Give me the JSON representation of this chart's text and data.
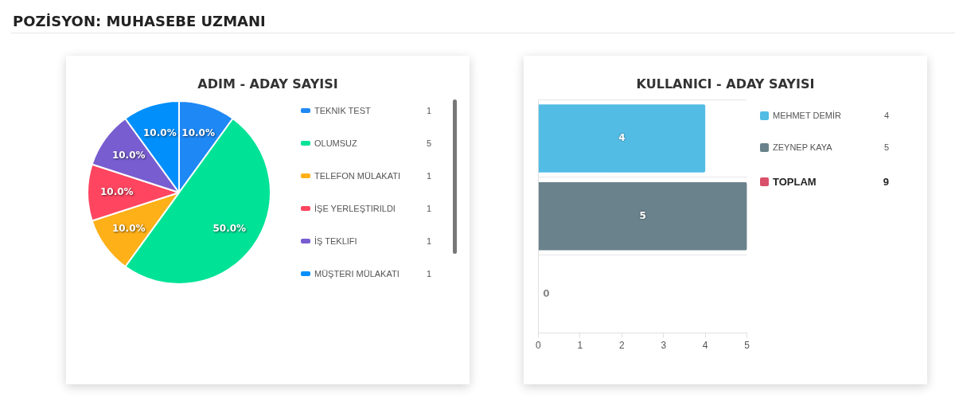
{
  "chart_data": [
    {
      "type": "pie",
      "title": "ADIM - ADAY SAYISI",
      "legend": "right",
      "annotations": [
        "POZİSYON: MUHASEBE UZMANI",
        "1",
        "5",
        "1",
        "1",
        "1",
        "1"
      ],
      "categories": [
        "TEKNIK TEST",
        "OLUMSUZ",
        "TELEFON MÜLAKATI",
        "İŞE YERLEŞTIRILDI",
        "İŞ TEKLIFI",
        "MÜŞTERI MÜLAKATI"
      ],
      "values": [
        10,
        50,
        10,
        10,
        10,
        10
      ],
      "value_labels": [
        "10.0%",
        "50.0%",
        "10.0%",
        "10.0%",
        "10.0%",
        "10.0%"
      ],
      "colors": [
        "#1e88f5",
        "#00e396",
        "#feb019",
        "#ff4560",
        "#775dd0",
        "#008ffb"
      ]
    },
    {
      "type": "bar",
      "orientation": "horizontal",
      "stacked": true,
      "title": "KULLANICI - ADAY SAYISI",
      "legend": "right",
      "annotations": [
        "4",
        "5",
        "9"
      ],
      "categories": [
        null,
        null,
        null
      ],
      "series": [
        {
          "name": "MEHMET DEMİR",
          "color": "#53bce4",
          "values": [
            4,
            null,
            null
          ]
        },
        {
          "name": "ZEYNEP KAYA",
          "color": "#6a828c",
          "values": [
            null,
            5,
            null
          ]
        },
        {
          "name": "TOPLAM",
          "color": "#d9506a",
          "values": [
            null,
            null,
            0
          ]
        }
      ],
      "data_labels": true,
      "xlim": [
        0,
        5
      ],
      "xticks": [
        0,
        1,
        2,
        3,
        4,
        5
      ],
      "grid": "y",
      "tick_labels": "x"
    }
  ]
}
